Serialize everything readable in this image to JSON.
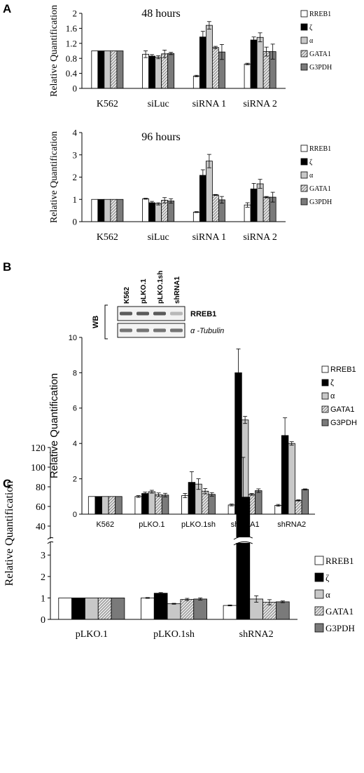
{
  "patterns": {
    "white": "#ffffff",
    "black": "#000000",
    "light": "#c8c8c8",
    "hatched": "hatch",
    "dark": "#7a7a7a"
  },
  "chart_data": [
    {
      "panel": "A",
      "type": "bar",
      "title": "48 hours",
      "ylabel": "Relative Quantification",
      "ylim": [
        0,
        2
      ],
      "yticks": [
        "0",
        "0.4",
        "0.8",
        "1.2",
        "1.6",
        "2"
      ],
      "yticks_values": [
        0,
        0.4,
        0.8,
        1.2,
        1.6,
        2
      ],
      "categories": [
        "K562",
        "siLuc",
        "siRNA 1",
        "siRNA 2"
      ],
      "legend_position": "right",
      "series": [
        {
          "name": "RREB1",
          "fill": "white",
          "values": [
            1.0,
            0.91,
            0.33,
            0.65
          ],
          "errors": [
            0,
            0.09,
            0.02,
            0.02
          ]
        },
        {
          "name": "ζ",
          "fill": "black",
          "values": [
            1.0,
            0.86,
            1.37,
            1.29
          ],
          "errors": [
            0,
            0.04,
            0.15,
            0.08
          ]
        },
        {
          "name": "α",
          "fill": "light",
          "values": [
            1.0,
            0.83,
            1.68,
            1.36
          ],
          "errors": [
            0,
            0.04,
            0.1,
            0.12
          ]
        },
        {
          "name": "GATA1",
          "fill": "hatched",
          "values": [
            1.0,
            0.92,
            1.09,
            0.98
          ],
          "errors": [
            0,
            0.1,
            0.03,
            0.12
          ]
        },
        {
          "name": "G3PDH",
          "fill": "dark",
          "values": [
            1.0,
            0.93,
            0.97,
            0.98
          ],
          "errors": [
            0,
            0.03,
            0.2,
            0.2
          ]
        }
      ]
    },
    {
      "panel": "",
      "type": "bar",
      "title": "96 hours",
      "ylabel": "Relative Quantification",
      "ylim": [
        0,
        4
      ],
      "yticks": [
        "0",
        "1",
        "2",
        "3",
        "4"
      ],
      "yticks_values": [
        0,
        1,
        2,
        3,
        4
      ],
      "categories": [
        "K562",
        "siLuc",
        "siRNA 1",
        "siRNA 2"
      ],
      "legend_position": "right",
      "series": [
        {
          "name": "RREB1",
          "fill": "white",
          "values": [
            1.0,
            1.03,
            0.43,
            0.75
          ],
          "errors": [
            0,
            0.02,
            0.02,
            0.1
          ]
        },
        {
          "name": "ζ",
          "fill": "black",
          "values": [
            1.0,
            0.85,
            2.08,
            1.47
          ],
          "errors": [
            0,
            0.06,
            0.25,
            0.25
          ]
        },
        {
          "name": "α",
          "fill": "light",
          "values": [
            1.0,
            0.8,
            2.72,
            1.7
          ],
          "errors": [
            0,
            0.05,
            0.3,
            0.2
          ]
        },
        {
          "name": "GATA1",
          "fill": "hatched",
          "values": [
            1.0,
            0.96,
            1.2,
            1.1
          ],
          "errors": [
            0,
            0.12,
            0.02,
            0.03
          ]
        },
        {
          "name": "G3PDH",
          "fill": "dark",
          "values": [
            1.0,
            0.93,
            0.98,
            1.1
          ],
          "errors": [
            0,
            0.1,
            0.15,
            0.22
          ]
        }
      ]
    },
    {
      "panel": "B",
      "type": "bar",
      "title": "",
      "ylabel": "Relative Quantification",
      "ylim": [
        0,
        10
      ],
      "yticks": [
        "0",
        "2",
        "4",
        "6",
        "8",
        "10"
      ],
      "yticks_values": [
        0,
        2,
        4,
        6,
        8,
        10
      ],
      "categories": [
        "K562",
        "pLKO.1",
        "pLKO.1sh",
        "shRNA1",
        "shRNA2"
      ],
      "legend_position": "right",
      "series": [
        {
          "name": "RREB1",
          "fill": "white",
          "values": [
            1.0,
            1.0,
            1.05,
            0.52,
            0.5
          ],
          "errors": [
            0,
            0.05,
            0.12,
            0.05,
            0.05
          ]
        },
        {
          "name": "ζ",
          "fill": "black",
          "values": [
            1.0,
            1.17,
            1.8,
            8.0,
            4.45
          ],
          "errors": [
            0,
            0.08,
            0.6,
            1.35,
            1.0
          ]
        },
        {
          "name": "α",
          "fill": "light",
          "values": [
            1.0,
            1.27,
            1.7,
            5.33,
            4.0
          ],
          "errors": [
            0,
            0.08,
            0.3,
            0.2,
            0.1
          ]
        },
        {
          "name": "GATA1",
          "fill": "hatched",
          "values": [
            1.0,
            1.1,
            1.3,
            1.12,
            0.78
          ],
          "errors": [
            0,
            0.1,
            0.15,
            0.05,
            0.03
          ]
        },
        {
          "name": "G3PDH",
          "fill": "dark",
          "values": [
            1.0,
            1.08,
            1.12,
            1.33,
            1.4
          ],
          "errors": [
            0,
            0.1,
            0.1,
            0.1,
            0.03
          ]
        }
      ],
      "inset": {
        "label": "WB",
        "lanes": [
          "K562",
          "pLKO.1",
          "pLKO.1sh",
          "shRNA1"
        ],
        "rows": [
          {
            "name": "RREB1",
            "intensity": [
              0.85,
              0.85,
              0.85,
              0.3
            ]
          },
          {
            "name": "α -Tubulin",
            "intensity": [
              0.7,
              0.7,
              0.7,
              0.7
            ]
          }
        ]
      }
    },
    {
      "panel": "C",
      "type": "bar",
      "title": "",
      "ylabel": "Relative Quantification",
      "axis_break": true,
      "ylim_lower": [
        0,
        3.5
      ],
      "ylim_upper": [
        30,
        120
      ],
      "yticks_lower": [
        "0",
        "1",
        "2",
        "3"
      ],
      "yticks_lower_values": [
        0,
        1,
        2,
        3
      ],
      "yticks_upper": [
        "40",
        "60",
        "80",
        "100",
        "120"
      ],
      "yticks_upper_values": [
        40,
        60,
        80,
        100,
        120
      ],
      "categories": [
        "pLKO.1",
        "pLKO.1sh",
        "shRNA2"
      ],
      "legend_position": "right",
      "series": [
        {
          "name": "RREB1",
          "fill": "white",
          "values": [
            1.0,
            1.0,
            0.65
          ],
          "errors": [
            0,
            0.02,
            0.02
          ]
        },
        {
          "name": "ζ",
          "fill": "black",
          "values": [
            1.0,
            1.22,
            69.5
          ],
          "errors": [
            0,
            0.03,
            40.5
          ]
        },
        {
          "name": "α",
          "fill": "light",
          "values": [
            1.0,
            0.73,
            0.95
          ],
          "errors": [
            0,
            0.02,
            0.15
          ]
        },
        {
          "name": "GATA1",
          "fill": "hatched",
          "values": [
            1.0,
            0.93,
            0.8
          ],
          "errors": [
            0,
            0.05,
            0.12
          ]
        },
        {
          "name": "G3PDH",
          "fill": "dark",
          "values": [
            1.0,
            0.95,
            0.82
          ],
          "errors": [
            0,
            0.05,
            0.04
          ]
        }
      ]
    }
  ]
}
